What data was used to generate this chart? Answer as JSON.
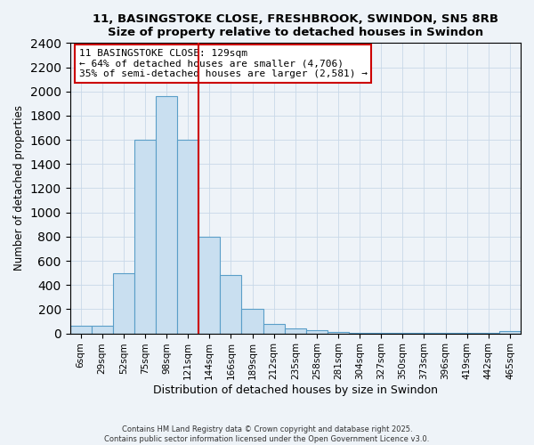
{
  "title": "11, BASINGSTOKE CLOSE, FRESHBROOK, SWINDON, SN5 8RB",
  "subtitle": "Size of property relative to detached houses in Swindon",
  "xlabel": "Distribution of detached houses by size in Swindon",
  "ylabel": "Number of detached properties",
  "footer1": "Contains HM Land Registry data © Crown copyright and database right 2025.",
  "footer2": "Contains public sector information licensed under the Open Government Licence v3.0.",
  "annotation_line1": "11 BASINGSTOKE CLOSE: 129sqm",
  "annotation_line2": "← 64% of detached houses are smaller (4,706)",
  "annotation_line3": "35% of semi-detached houses are larger (2,581) →",
  "bar_color": "#c9dff0",
  "bar_edge_color": "#5a9ec8",
  "vertical_line_color": "#cc0000",
  "annotation_box_edge": "#cc0000",
  "background_color": "#eef3f8",
  "plot_bg_color": "#eef3f8",
  "categories": [
    "6sqm",
    "29sqm",
    "52sqm",
    "75sqm",
    "98sqm",
    "121sqm",
    "144sqm",
    "166sqm",
    "189sqm",
    "212sqm",
    "235sqm",
    "258sqm",
    "281sqm",
    "304sqm",
    "327sqm",
    "350sqm",
    "373sqm",
    "396sqm",
    "419sqm",
    "442sqm",
    "465sqm"
  ],
  "values": [
    60,
    60,
    500,
    1600,
    1960,
    1600,
    800,
    480,
    200,
    80,
    40,
    25,
    15,
    8,
    5,
    5,
    5,
    2,
    2,
    2,
    20
  ],
  "vline_x": 5.5,
  "ylim": [
    0,
    2400
  ],
  "yticks": [
    0,
    200,
    400,
    600,
    800,
    1000,
    1200,
    1400,
    1600,
    1800,
    2000,
    2200,
    2400
  ]
}
